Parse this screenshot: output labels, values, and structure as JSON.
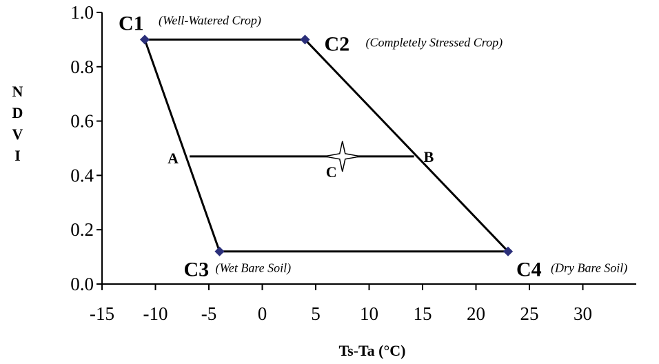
{
  "chart_data": {
    "type": "scatter",
    "y_label": "NDVI",
    "x_label": "Ts-Ta (°C)",
    "xlim": [
      -15,
      35
    ],
    "xticks": [
      -15,
      -10,
      -5,
      0,
      5,
      10,
      15,
      20,
      25,
      30
    ],
    "ylim": [
      0,
      1
    ],
    "yticks": [
      {
        "value": 0,
        "label": "0.0"
      },
      {
        "value": 0.2,
        "label": "0.2"
      },
      {
        "value": 0.4,
        "label": "0.4"
      },
      {
        "value": 0.6,
        "label": "0.6"
      },
      {
        "value": 0.8,
        "label": "0.8"
      },
      {
        "value": 1,
        "label": "1.0"
      }
    ],
    "marker_color": "#2b2f7a",
    "line_color": "#000000",
    "series": [
      {
        "name": "C1",
        "description": "(Well-Watered Crop)",
        "x": -11,
        "y": 0.9
      },
      {
        "name": "C2",
        "description": "(Completely Stressed Crop)",
        "x": 4,
        "y": 0.9
      },
      {
        "name": "C3",
        "description": "(Wet Bare Soil)",
        "x": -4,
        "y": 0.12
      },
      {
        "name": "C4",
        "description": "(Dry Bare Soil)",
        "x": 23,
        "y": 0.12
      }
    ],
    "interpolated": [
      {
        "name": "A",
        "x": -6.8,
        "y": 0.47
      },
      {
        "name": "B",
        "x": 14.2,
        "y": 0.47
      }
    ],
    "target": {
      "name": "C",
      "x": 7.5,
      "y": 0.47
    }
  }
}
